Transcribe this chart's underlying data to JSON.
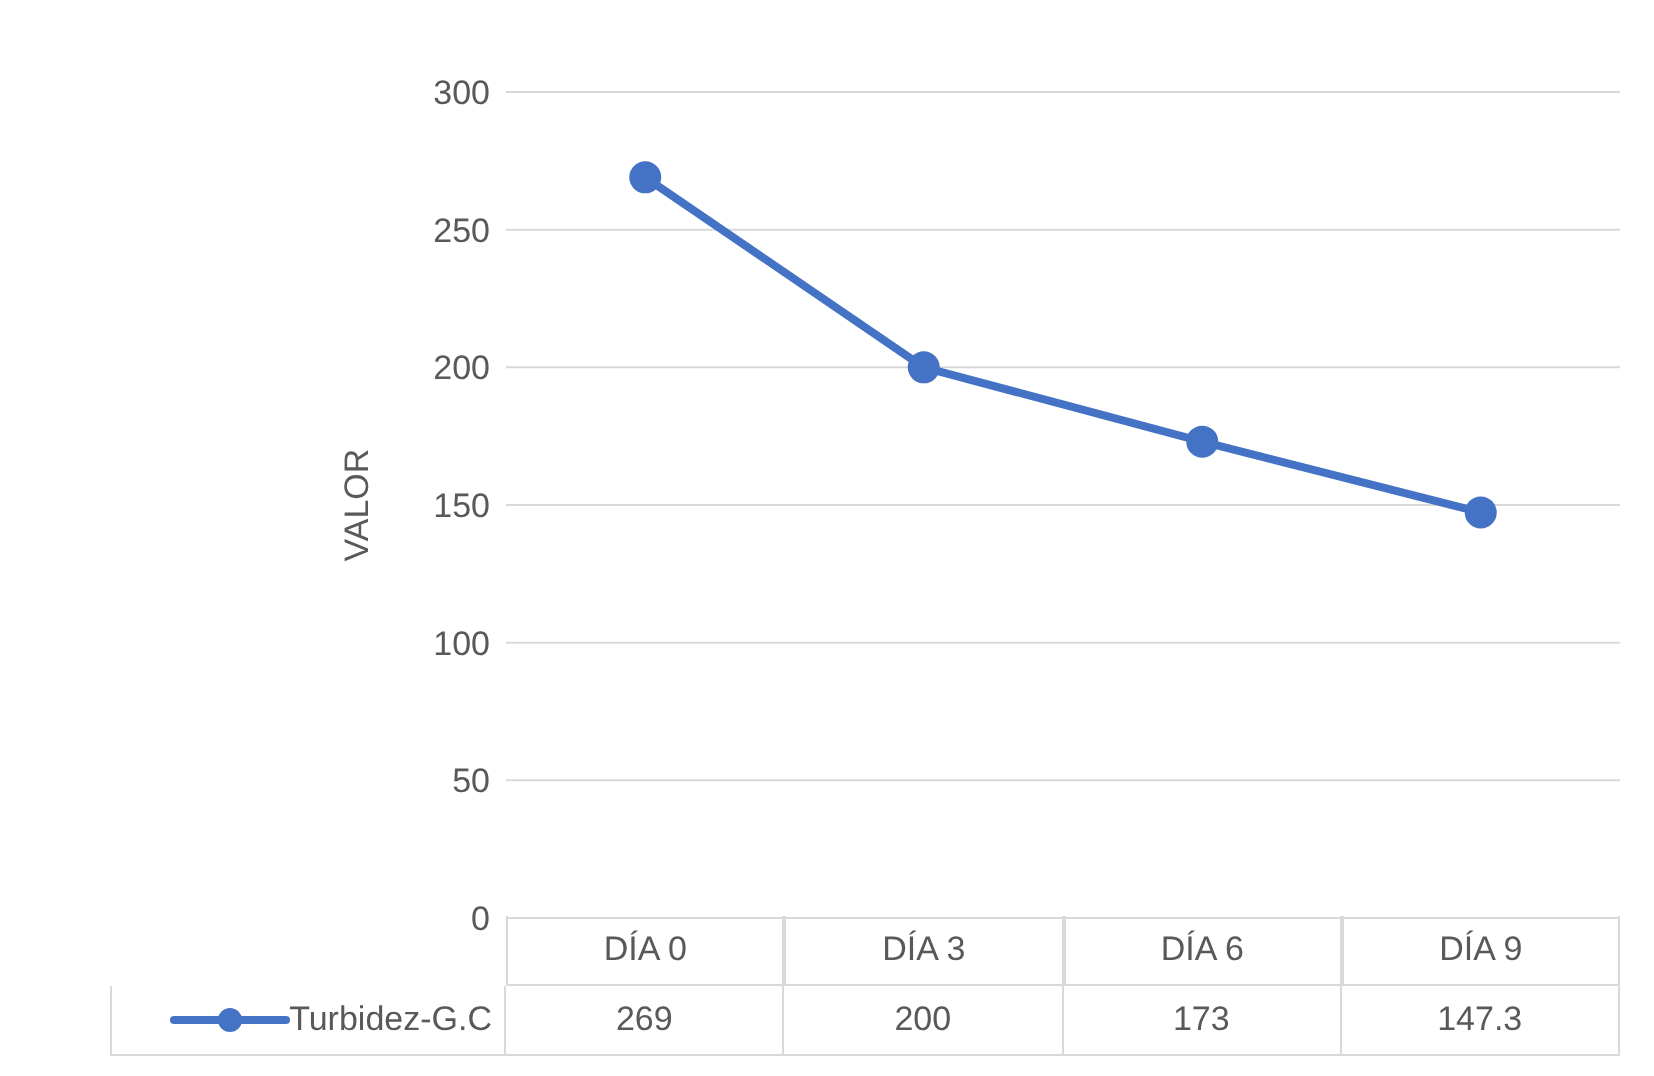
{
  "chart_data": {
    "type": "line",
    "ylabel": "VALOR",
    "categories": [
      "DÍA 0",
      "DÍA 3",
      "DÍA 6",
      "DÍA 9"
    ],
    "series": [
      {
        "name": "Turbidez-G.C",
        "color": "#4472c4",
        "values": [
          269,
          200,
          173,
          147.3
        ]
      }
    ],
    "ylim": [
      0,
      300
    ],
    "yticks": [
      0,
      50,
      100,
      150,
      200,
      250,
      300
    ],
    "grid": "y",
    "legend": "bottom",
    "marker": "circle",
    "line_style": "solid",
    "data_labels": true
  }
}
